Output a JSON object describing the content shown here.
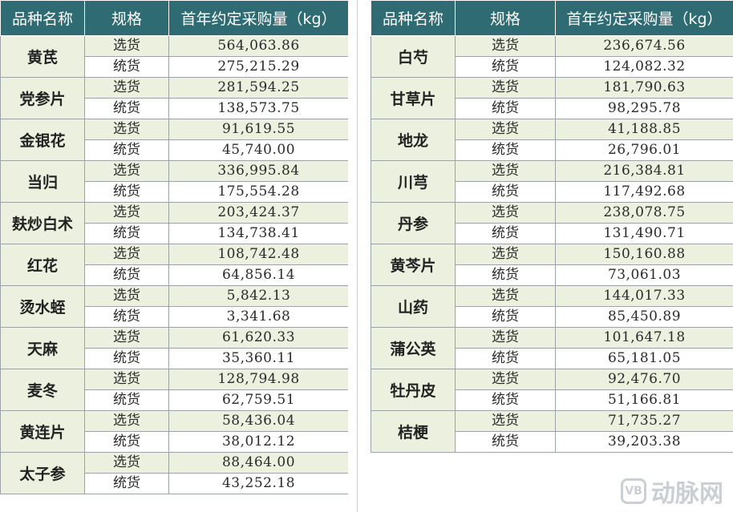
{
  "headers": {
    "name": "品种名称",
    "spec": "规格",
    "value": "首年约定采购量（kg）"
  },
  "left": [
    {
      "name": "黄芪",
      "rows": [
        {
          "spec": "选货",
          "value": "564,063.86"
        },
        {
          "spec": "统货",
          "value": "275,215.29"
        }
      ]
    },
    {
      "name": "党参片",
      "rows": [
        {
          "spec": "选货",
          "value": "281,594.25"
        },
        {
          "spec": "统货",
          "value": "138,573.75"
        }
      ]
    },
    {
      "name": "金银花",
      "rows": [
        {
          "spec": "选货",
          "value": "91,619.55"
        },
        {
          "spec": "统货",
          "value": "45,740.00"
        }
      ]
    },
    {
      "name": "当归",
      "rows": [
        {
          "spec": "选货",
          "value": "336,995.84"
        },
        {
          "spec": "统货",
          "value": "175,554.28"
        }
      ]
    },
    {
      "name": "麸炒白术",
      "rows": [
        {
          "spec": "选货",
          "value": "203,424.37"
        },
        {
          "spec": "统货",
          "value": "134,738.41"
        }
      ]
    },
    {
      "name": "红花",
      "rows": [
        {
          "spec": "选货",
          "value": "108,742.48"
        },
        {
          "spec": "统货",
          "value": "64,856.14"
        }
      ]
    },
    {
      "name": "烫水蛭",
      "rows": [
        {
          "spec": "选货",
          "value": "5,842.13"
        },
        {
          "spec": "统货",
          "value": "3,341.68"
        }
      ]
    },
    {
      "name": "天麻",
      "rows": [
        {
          "spec": "选货",
          "value": "61,620.33"
        },
        {
          "spec": "统货",
          "value": "35,360.11"
        }
      ]
    },
    {
      "name": "麦冬",
      "rows": [
        {
          "spec": "选货",
          "value": "128,794.98"
        },
        {
          "spec": "统货",
          "value": "62,759.51"
        }
      ]
    },
    {
      "name": "黄连片",
      "rows": [
        {
          "spec": "选货",
          "value": "58,436.04"
        },
        {
          "spec": "统货",
          "value": "38,012.12"
        }
      ]
    },
    {
      "name": "太子参",
      "rows": [
        {
          "spec": "选货",
          "value": "88,464.00"
        },
        {
          "spec": "统货",
          "value": "43,252.18"
        }
      ]
    }
  ],
  "right": [
    {
      "name": "白芍",
      "rows": [
        {
          "spec": "选货",
          "value": "236,674.56"
        },
        {
          "spec": "统货",
          "value": "124,082.32"
        }
      ]
    },
    {
      "name": "甘草片",
      "rows": [
        {
          "spec": "选货",
          "value": "181,790.63"
        },
        {
          "spec": "统货",
          "value": "98,295.78"
        }
      ]
    },
    {
      "name": "地龙",
      "rows": [
        {
          "spec": "选货",
          "value": "41,188.85"
        },
        {
          "spec": "统货",
          "value": "26,796.01"
        }
      ]
    },
    {
      "name": "川芎",
      "rows": [
        {
          "spec": "选货",
          "value": "216,384.81"
        },
        {
          "spec": "统货",
          "value": "117,492.68"
        }
      ]
    },
    {
      "name": "丹参",
      "rows": [
        {
          "spec": "选货",
          "value": "238,078.75"
        },
        {
          "spec": "统货",
          "value": "131,490.71"
        }
      ]
    },
    {
      "name": "黄芩片",
      "rows": [
        {
          "spec": "选货",
          "value": "150,160.88"
        },
        {
          "spec": "统货",
          "value": "73,061.03"
        }
      ]
    },
    {
      "name": "山药",
      "rows": [
        {
          "spec": "选货",
          "value": "144,017.33"
        },
        {
          "spec": "统货",
          "value": "85,450.89"
        }
      ]
    },
    {
      "name": "蒲公英",
      "rows": [
        {
          "spec": "选货",
          "value": "101,647.18"
        },
        {
          "spec": "统货",
          "value": "65,181.05"
        }
      ]
    },
    {
      "name": "牡丹皮",
      "rows": [
        {
          "spec": "选货",
          "value": "92,476.70"
        },
        {
          "spec": "统货",
          "value": "51,166.81"
        }
      ]
    },
    {
      "name": "桔梗",
      "rows": [
        {
          "spec": "选货",
          "value": "71,735.27"
        },
        {
          "spec": "统货",
          "value": "39,203.38"
        }
      ]
    }
  ],
  "watermark": {
    "logo": "VB",
    "text": "动脉网"
  },
  "colors": {
    "header_bg": "#2f6b72",
    "band": "#ebf1de",
    "border": "#9aa3a5"
  }
}
